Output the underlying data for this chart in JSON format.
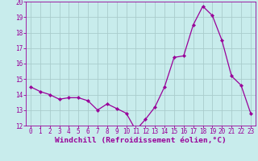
{
  "x": [
    0,
    1,
    2,
    3,
    4,
    5,
    6,
    7,
    8,
    9,
    10,
    11,
    12,
    13,
    14,
    15,
    16,
    17,
    18,
    19,
    20,
    21,
    22,
    23
  ],
  "y": [
    14.5,
    14.2,
    14.0,
    13.7,
    13.8,
    13.8,
    13.6,
    13.0,
    13.4,
    13.1,
    12.8,
    11.7,
    12.4,
    13.2,
    14.5,
    16.4,
    16.5,
    18.5,
    19.7,
    19.1,
    17.5,
    15.2,
    14.6,
    12.8
  ],
  "line_color": "#990099",
  "marker": "D",
  "marker_size": 2.2,
  "bg_color": "#c8ecec",
  "grid_color": "#aacccc",
  "xlabel": "Windchill (Refroidissement éolien,°C)",
  "xlabel_color": "#990099",
  "ylim": [
    12,
    20
  ],
  "xlim": [
    -0.5,
    23.5
  ],
  "yticks": [
    12,
    13,
    14,
    15,
    16,
    17,
    18,
    19,
    20
  ],
  "xticks": [
    0,
    1,
    2,
    3,
    4,
    5,
    6,
    7,
    8,
    9,
    10,
    11,
    12,
    13,
    14,
    15,
    16,
    17,
    18,
    19,
    20,
    21,
    22,
    23
  ],
  "tick_label_color": "#990099",
  "tick_label_size": 5.5,
  "xlabel_size": 6.8,
  "line_width": 0.9
}
